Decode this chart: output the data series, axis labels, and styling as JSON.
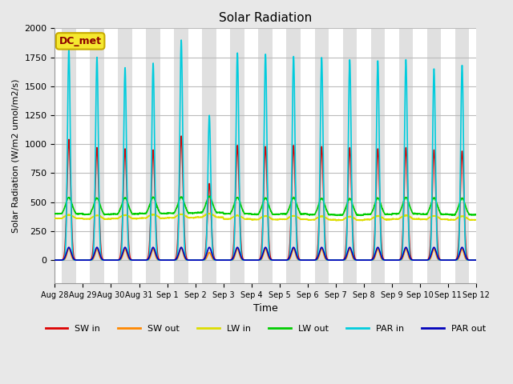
{
  "title": "Solar Radiation",
  "ylabel": "Solar Radiation (W/m2 umol/m2/s)",
  "xlabel": "Time",
  "ylim": [
    -200,
    2000
  ],
  "fig_bg_color": "#e8e8e8",
  "plot_bg_color": "#ffffff",
  "day_band_color": "#e0e0e0",
  "night_band_color": "#ffffff",
  "annotation_text": "DC_met",
  "annotation_box_facecolor": "#f5e830",
  "annotation_box_edgecolor": "#c8aa00",
  "annotation_text_color": "#8b0000",
  "series": [
    {
      "label": "SW in",
      "color": "#dd0000",
      "lw": 1.2
    },
    {
      "label": "SW out",
      "color": "#ff8800",
      "lw": 1.2
    },
    {
      "label": "LW in",
      "color": "#dddd00",
      "lw": 1.2
    },
    {
      "label": "LW out",
      "color": "#00cc00",
      "lw": 1.2
    },
    {
      "label": "PAR in",
      "color": "#00ccdd",
      "lw": 1.2
    },
    {
      "label": "PAR out",
      "color": "#0000bb",
      "lw": 1.2
    }
  ],
  "num_days": 15,
  "x_tick_labels": [
    "Aug 28",
    "Aug 29",
    "Aug 30",
    "Aug 31",
    "Sep 1",
    "Sep 2",
    "Sep 3",
    "Sep 4",
    "Sep 5",
    "Sep 6",
    "Sep 7",
    "Sep 8",
    "Sep 9",
    "Sep 10",
    "Sep 11",
    "Sep 12"
  ],
  "grid_color": "#cccccc",
  "grid_lw": 0.8,
  "sw_in_peaks": [
    1040,
    970,
    960,
    950,
    1070,
    660,
    990,
    980,
    990,
    980,
    970,
    960,
    970,
    950,
    940
  ],
  "par_in_peaks": [
    1820,
    1750,
    1660,
    1700,
    1900,
    1250,
    1790,
    1780,
    1760,
    1750,
    1730,
    1720,
    1730,
    1650,
    1680
  ],
  "lw_in_base": [
    360,
    355,
    358,
    362,
    365,
    370,
    355,
    350,
    352,
    348,
    345,
    350,
    355,
    352,
    348
  ],
  "lw_out_base": [
    400,
    395,
    398,
    402,
    405,
    410,
    400,
    395,
    398,
    392,
    390,
    395,
    400,
    396,
    392
  ]
}
